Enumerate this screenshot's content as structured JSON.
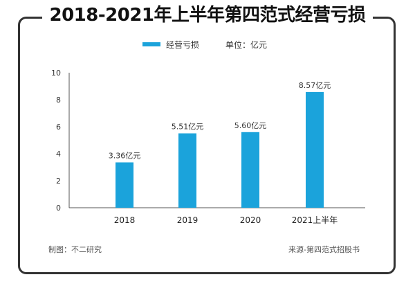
{
  "header": {
    "title": "2018-2021年上半年第四范式经营亏损"
  },
  "legend": {
    "series_label": "经营亏损",
    "unit_label": "单位：亿元"
  },
  "footer": {
    "credit": "制图：不二研究",
    "source": "来源-第四范式招股书"
  },
  "colors": {
    "bar": "#1ba3db",
    "axis": "#555555",
    "frame": "#333333"
  },
  "chart_data": {
    "type": "bar",
    "categories": [
      "2018",
      "2019",
      "2020",
      "2021上半年"
    ],
    "series": [
      {
        "name": "经营亏损",
        "values": [
          3.36,
          5.51,
          5.6,
          8.57
        ]
      }
    ],
    "data_labels": [
      "3.36亿元",
      "5.51亿元",
      "5.60亿元",
      "8.57亿元"
    ],
    "y_ticks": [
      "0",
      "2",
      "4",
      "6",
      "8",
      "10"
    ],
    "ylim": [
      0,
      10
    ],
    "grid": false,
    "legend_position": "top"
  }
}
